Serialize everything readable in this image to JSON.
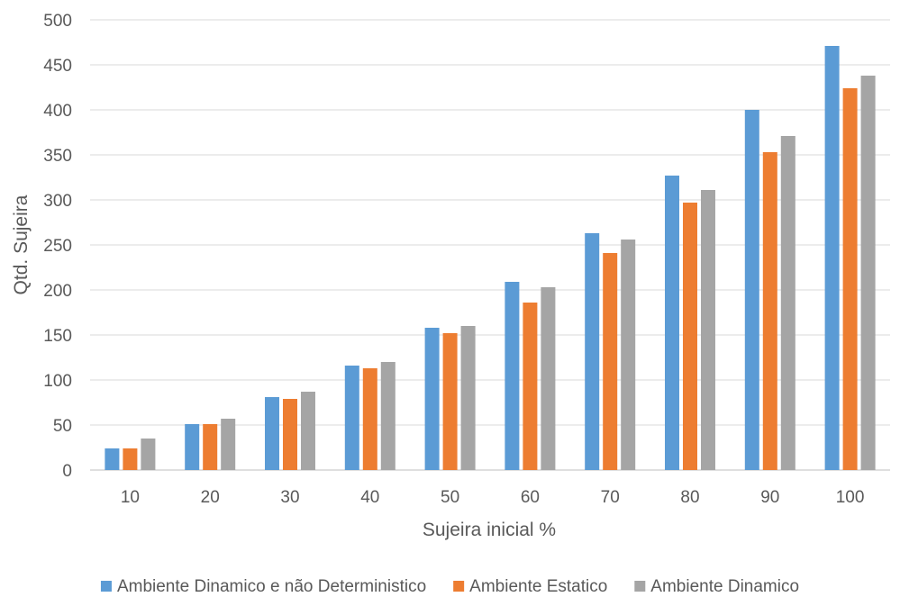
{
  "chart_data": {
    "type": "bar",
    "title": "",
    "xlabel": "Sujeira inicial %",
    "ylabel": "Qtd. Sujeira",
    "ylim": [
      0,
      500
    ],
    "yticks": [
      "0",
      "50",
      "100",
      "150",
      "200",
      "250",
      "300",
      "350",
      "400",
      "450",
      "500"
    ],
    "categories": [
      "10",
      "20",
      "30",
      "40",
      "50",
      "60",
      "70",
      "80",
      "90",
      "100"
    ],
    "grid": true,
    "legend_position": "bottom",
    "series": [
      {
        "name": "Ambiente Dinamico e não Deterministico",
        "color": "#5b9bd5",
        "values": [
          24,
          51,
          81,
          116,
          158,
          209,
          263,
          327,
          400,
          471
        ]
      },
      {
        "name": "Ambiente Estatico",
        "color": "#ed7d31",
        "values": [
          24,
          51,
          79,
          113,
          152,
          186,
          241,
          297,
          353,
          424
        ]
      },
      {
        "name": "Ambiente Dinamico",
        "color": "#a5a5a5",
        "values": [
          35,
          57,
          87,
          120,
          160,
          203,
          256,
          311,
          371,
          438
        ]
      }
    ]
  }
}
